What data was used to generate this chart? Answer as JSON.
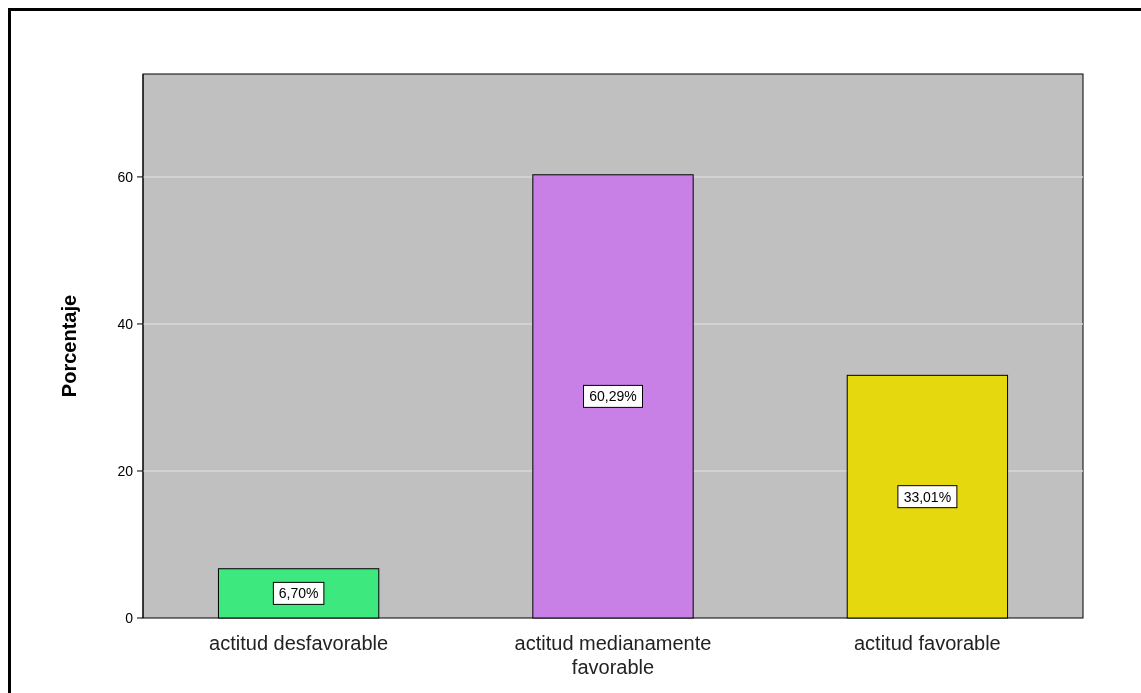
{
  "chart_data": {
    "type": "bar",
    "ylabel": "Porcentaje",
    "categories": [
      "actitud desfavorable",
      "actitud medianamente favorable",
      "actitud favorable"
    ],
    "values": [
      6.7,
      60.29,
      33.01
    ],
    "colors": [
      "#3de87e",
      "#c880e6",
      "#e6d80e"
    ],
    "value_labels": [
      "6,70%",
      "60,29%",
      "33,01%"
    ],
    "ylim": [
      0,
      74
    ],
    "yticks": [
      0,
      20,
      40,
      60
    ],
    "grid": "y"
  }
}
